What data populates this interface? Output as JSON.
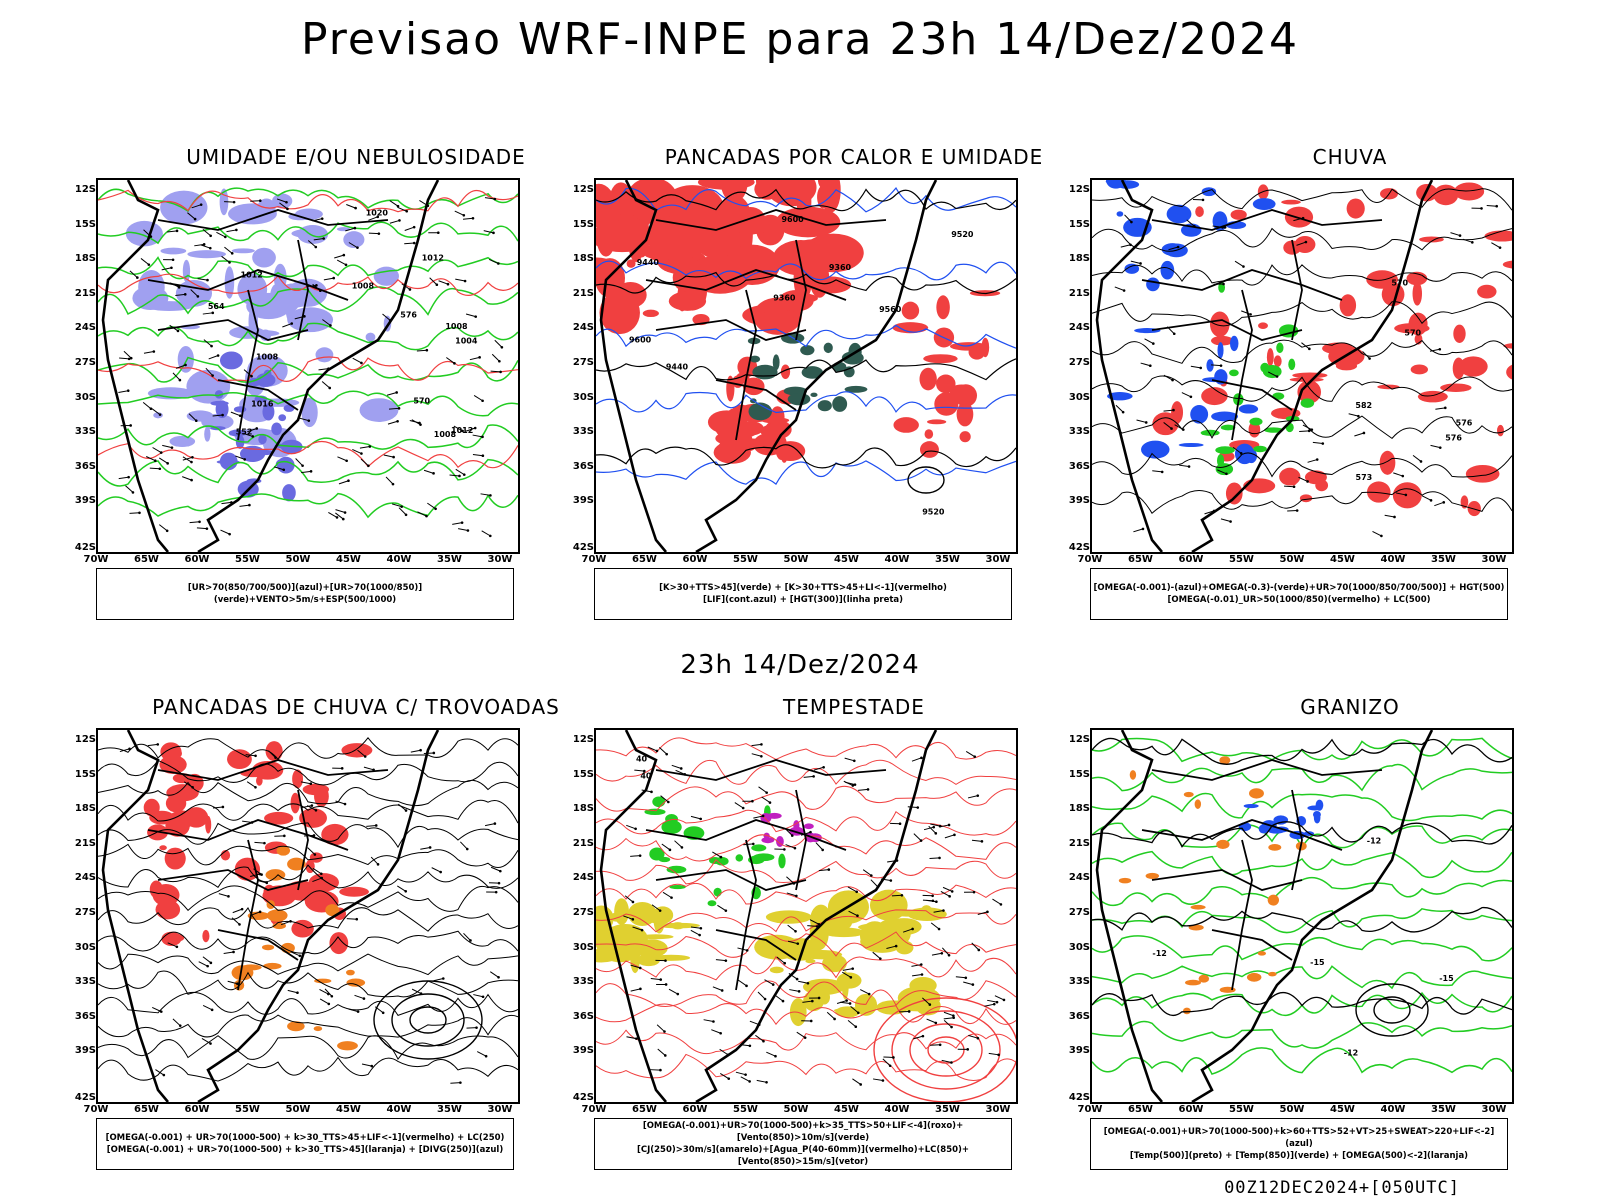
{
  "title": "Previsao WRF-INPE  para 23h 14/Dez/2024",
  "mid_title": "23h 14/Dez/2024",
  "footer": "00Z12DEC2024+[050UTC]",
  "lat_labels": [
    "12S",
    "15S",
    "18S",
    "21S",
    "24S",
    "27S",
    "30S",
    "33S",
    "36S",
    "39S",
    "42S"
  ],
  "lon_labels": [
    "70W",
    "65W",
    "60W",
    "55W",
    "50W",
    "45W",
    "40W",
    "35W",
    "30W"
  ],
  "panels": [
    {
      "id": "umidade",
      "title": "UMIDADE E/OU NEBULOSIDADE",
      "legend": [
        "[UR>70(850/700/500)](azul)+[UR>70(1000/850)](verde)+VENTO>5m/s+ESP(500/1000)"
      ],
      "contour_labels": [
        "1012",
        "1008",
        "1008",
        "1004",
        "1008",
        "1012",
        "1016",
        "1020",
        "1008",
        "1012",
        "564",
        "570",
        "576",
        "552"
      ]
    },
    {
      "id": "pancadas-calor",
      "title": "PANCADAS POR CALOR E UMIDADE",
      "legend": [
        "[K>30+TTS>45](verde) + [K>30+TTS>45+LI<-1](vermelho)",
        "[LIF](cont.azul) + [HGT(300)](linha preta)"
      ],
      "contour_labels": [
        "9600",
        "9600",
        "9560",
        "9520",
        "9440",
        "9520",
        "9440",
        "9360",
        "9360"
      ]
    },
    {
      "id": "chuva",
      "title": "CHUVA",
      "legend": [
        "[OMEGA(-0.001)-(azul)+OMEGA(-0.3)-(verde)+UR>70(1000/850/700/500)] + HGT(500)",
        "[OMEGA(-0.01)_UR>50(1000/850)(vermelho) + LC(500)"
      ],
      "contour_labels": [
        "582",
        "576",
        "570",
        "576",
        "573",
        "570"
      ]
    },
    {
      "id": "pancadas-trovoadas",
      "title": "PANCADAS DE CHUVA C/ TROVOADAS",
      "legend": [
        "[OMEGA(-0.001) + UR>70(1000-500) + k>30_TTS>45+LIF<-1](vermelho) + LC(250)",
        "[OMEGA(-0.001) + UR>70(1000-500) + k>30_TTS>45](laranja) + [DIVG(250)](azul)"
      ],
      "contour_labels": []
    },
    {
      "id": "tempestade",
      "title": "TEMPESTADE",
      "legend": [
        "[OMEGA(-0.001)+UR>70(1000-500)+k>35_TTS>50+LIF<-4](roxo)+[Vento(850)>10m/s](verde)",
        "[CJ(250)>30m/s](amarelo)+[Agua_P(40-60mm)](vermelho)+LC(850)+[Vento(850)>15m/s](vetor)"
      ],
      "contour_labels": [
        "40",
        "40"
      ]
    },
    {
      "id": "granizo",
      "title": "GRANIZO",
      "legend": [
        "[OMEGA(-0.001)+UR>70(1000-500)+k>60+TTS>52+VT>25+SWEAT>220+LIF<-2](azul)",
        "[Temp(500)](preto) + [Temp(850)](verde) + [OMEGA(500)<-2](laranja)"
      ],
      "contour_labels": [
        "-12",
        "-15",
        "-12",
        "-15",
        "-12"
      ]
    }
  ],
  "colors": {
    "blue_humidity": "#a0a0f0",
    "green": "#22cc22",
    "red": "#f04040",
    "orange": "#f08020",
    "yellow": "#e0d030",
    "dark_green": "#2f5a50",
    "purple": "#c020c0",
    "blue": "#2050f0"
  }
}
